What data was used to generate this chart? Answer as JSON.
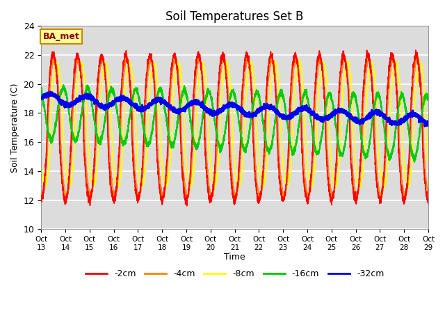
{
  "title": "Soil Temperatures Set B",
  "xlabel": "Time",
  "ylabel": "Soil Temperature (C)",
  "ylim": [
    10,
    24
  ],
  "background_color": "#dcdcdc",
  "figure_color": "#ffffff",
  "label_box": "BA_met",
  "x_tick_labels": [
    "Oct\n13",
    "Oct\n14",
    "Oct\n15",
    "Oct\n16",
    "Oct\n17",
    "Oct\n18",
    "Oct\n19",
    "Oct\n20",
    "Oct\n21",
    "Oct\n22",
    "Oct\n23",
    "Oct\n24",
    "Oct\n25",
    "Oct\n26",
    "Oct\n27",
    "Oct\n28",
    "Oct\n29"
  ],
  "yticks": [
    10,
    12,
    14,
    16,
    18,
    20,
    22,
    24
  ],
  "series": {
    "-2cm": {
      "color": "#ff0000",
      "lw": 1.2
    },
    "-4cm": {
      "color": "#ff8800",
      "lw": 1.2
    },
    "-8cm": {
      "color": "#ffff00",
      "lw": 1.2
    },
    "-16cm": {
      "color": "#00cc00",
      "lw": 1.5
    },
    "-32cm": {
      "color": "#0000ee",
      "lw": 2.2
    }
  },
  "period": 24.0,
  "n_days": 16,
  "n_points": 3840
}
